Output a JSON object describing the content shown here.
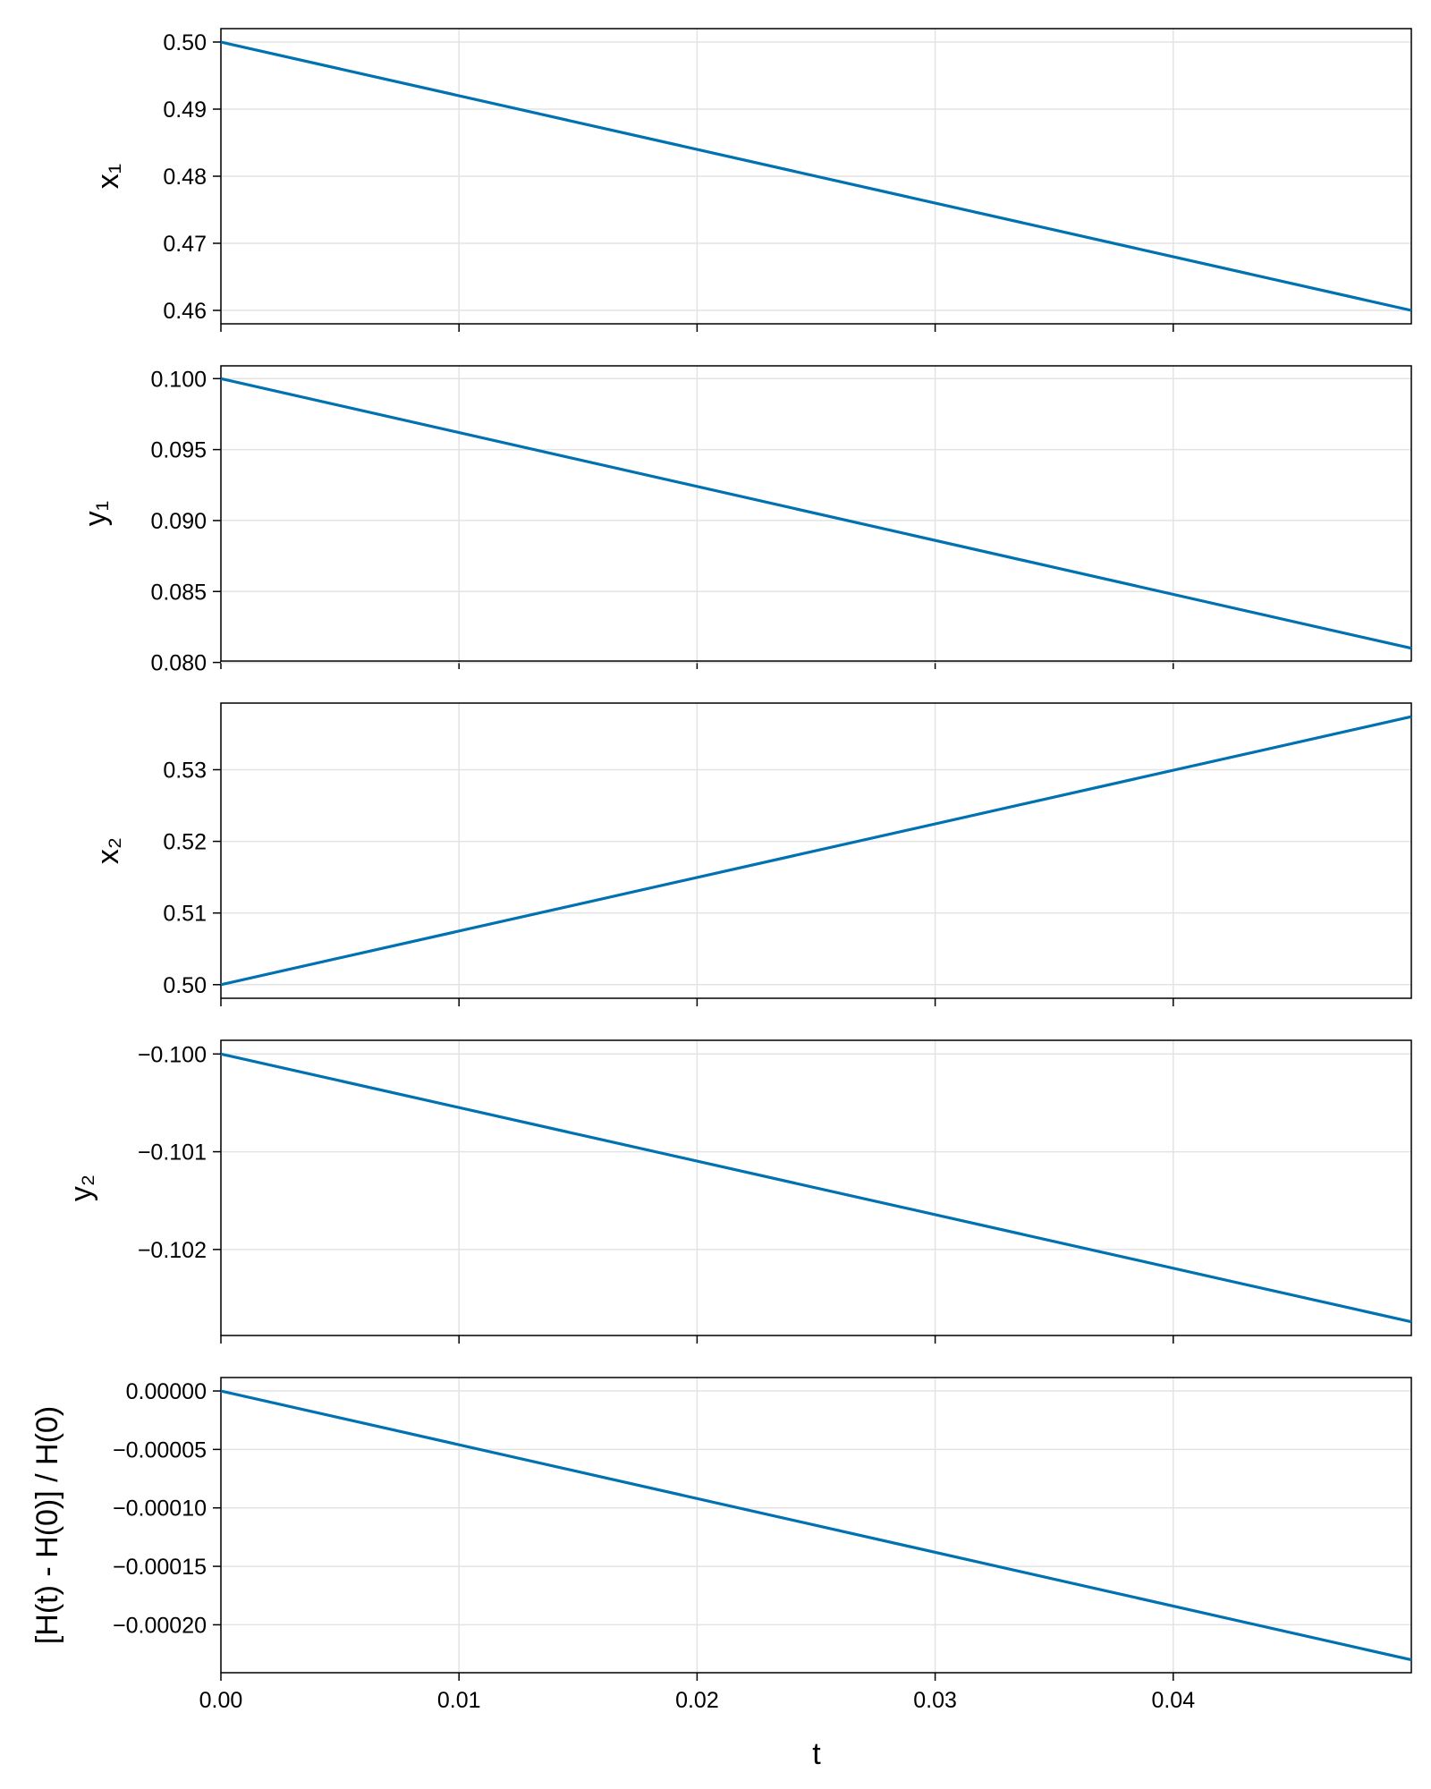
{
  "figure": {
    "xlabel": "t",
    "xlim": [
      0,
      0.05
    ],
    "xticks": [
      "0.00",
      "0.01",
      "0.02",
      "0.03",
      "0.04"
    ],
    "line_color": "#0072b2",
    "grid": true
  },
  "chart_data": [
    {
      "type": "line",
      "ylabel": "x₁",
      "x": [
        0.0,
        0.05
      ],
      "y": [
        0.5,
        0.46
      ],
      "ylim": [
        0.458,
        0.502
      ],
      "yticks": [
        "0.46",
        "0.47",
        "0.48",
        "0.49",
        "0.50"
      ]
    },
    {
      "type": "line",
      "ylabel": "y₁",
      "x": [
        0.0,
        0.05
      ],
      "y": [
        0.1,
        0.081
      ],
      "ylim": [
        0.0801,
        0.1009
      ],
      "yticks": [
        "0.080",
        "0.085",
        "0.090",
        "0.095",
        "0.100"
      ]
    },
    {
      "type": "line",
      "ylabel": "x₂",
      "x": [
        0.0,
        0.05
      ],
      "y": [
        0.5,
        0.5374
      ],
      "ylim": [
        0.4981,
        0.5393
      ],
      "yticks": [
        "0.50",
        "0.51",
        "0.52",
        "0.53"
      ]
    },
    {
      "type": "line",
      "ylabel": "y₂",
      "x": [
        0.0,
        0.05
      ],
      "y": [
        -0.1,
        -0.10274
      ],
      "ylim": [
        -0.10288,
        -0.09986
      ],
      "yticks": [
        "−0.102",
        "−0.101",
        "−0.100"
      ]
    },
    {
      "type": "line",
      "ylabel": "[H(t) - H(0)] / H(0)",
      "x": [
        0.0,
        0.05
      ],
      "y": [
        0.0,
        -0.00023
      ],
      "ylim": [
        -0.000241,
        1.15e-05
      ],
      "yticks": [
        "−0.00020",
        "−0.00015",
        "−0.00010",
        "−0.00005",
        "0.00000"
      ]
    }
  ]
}
